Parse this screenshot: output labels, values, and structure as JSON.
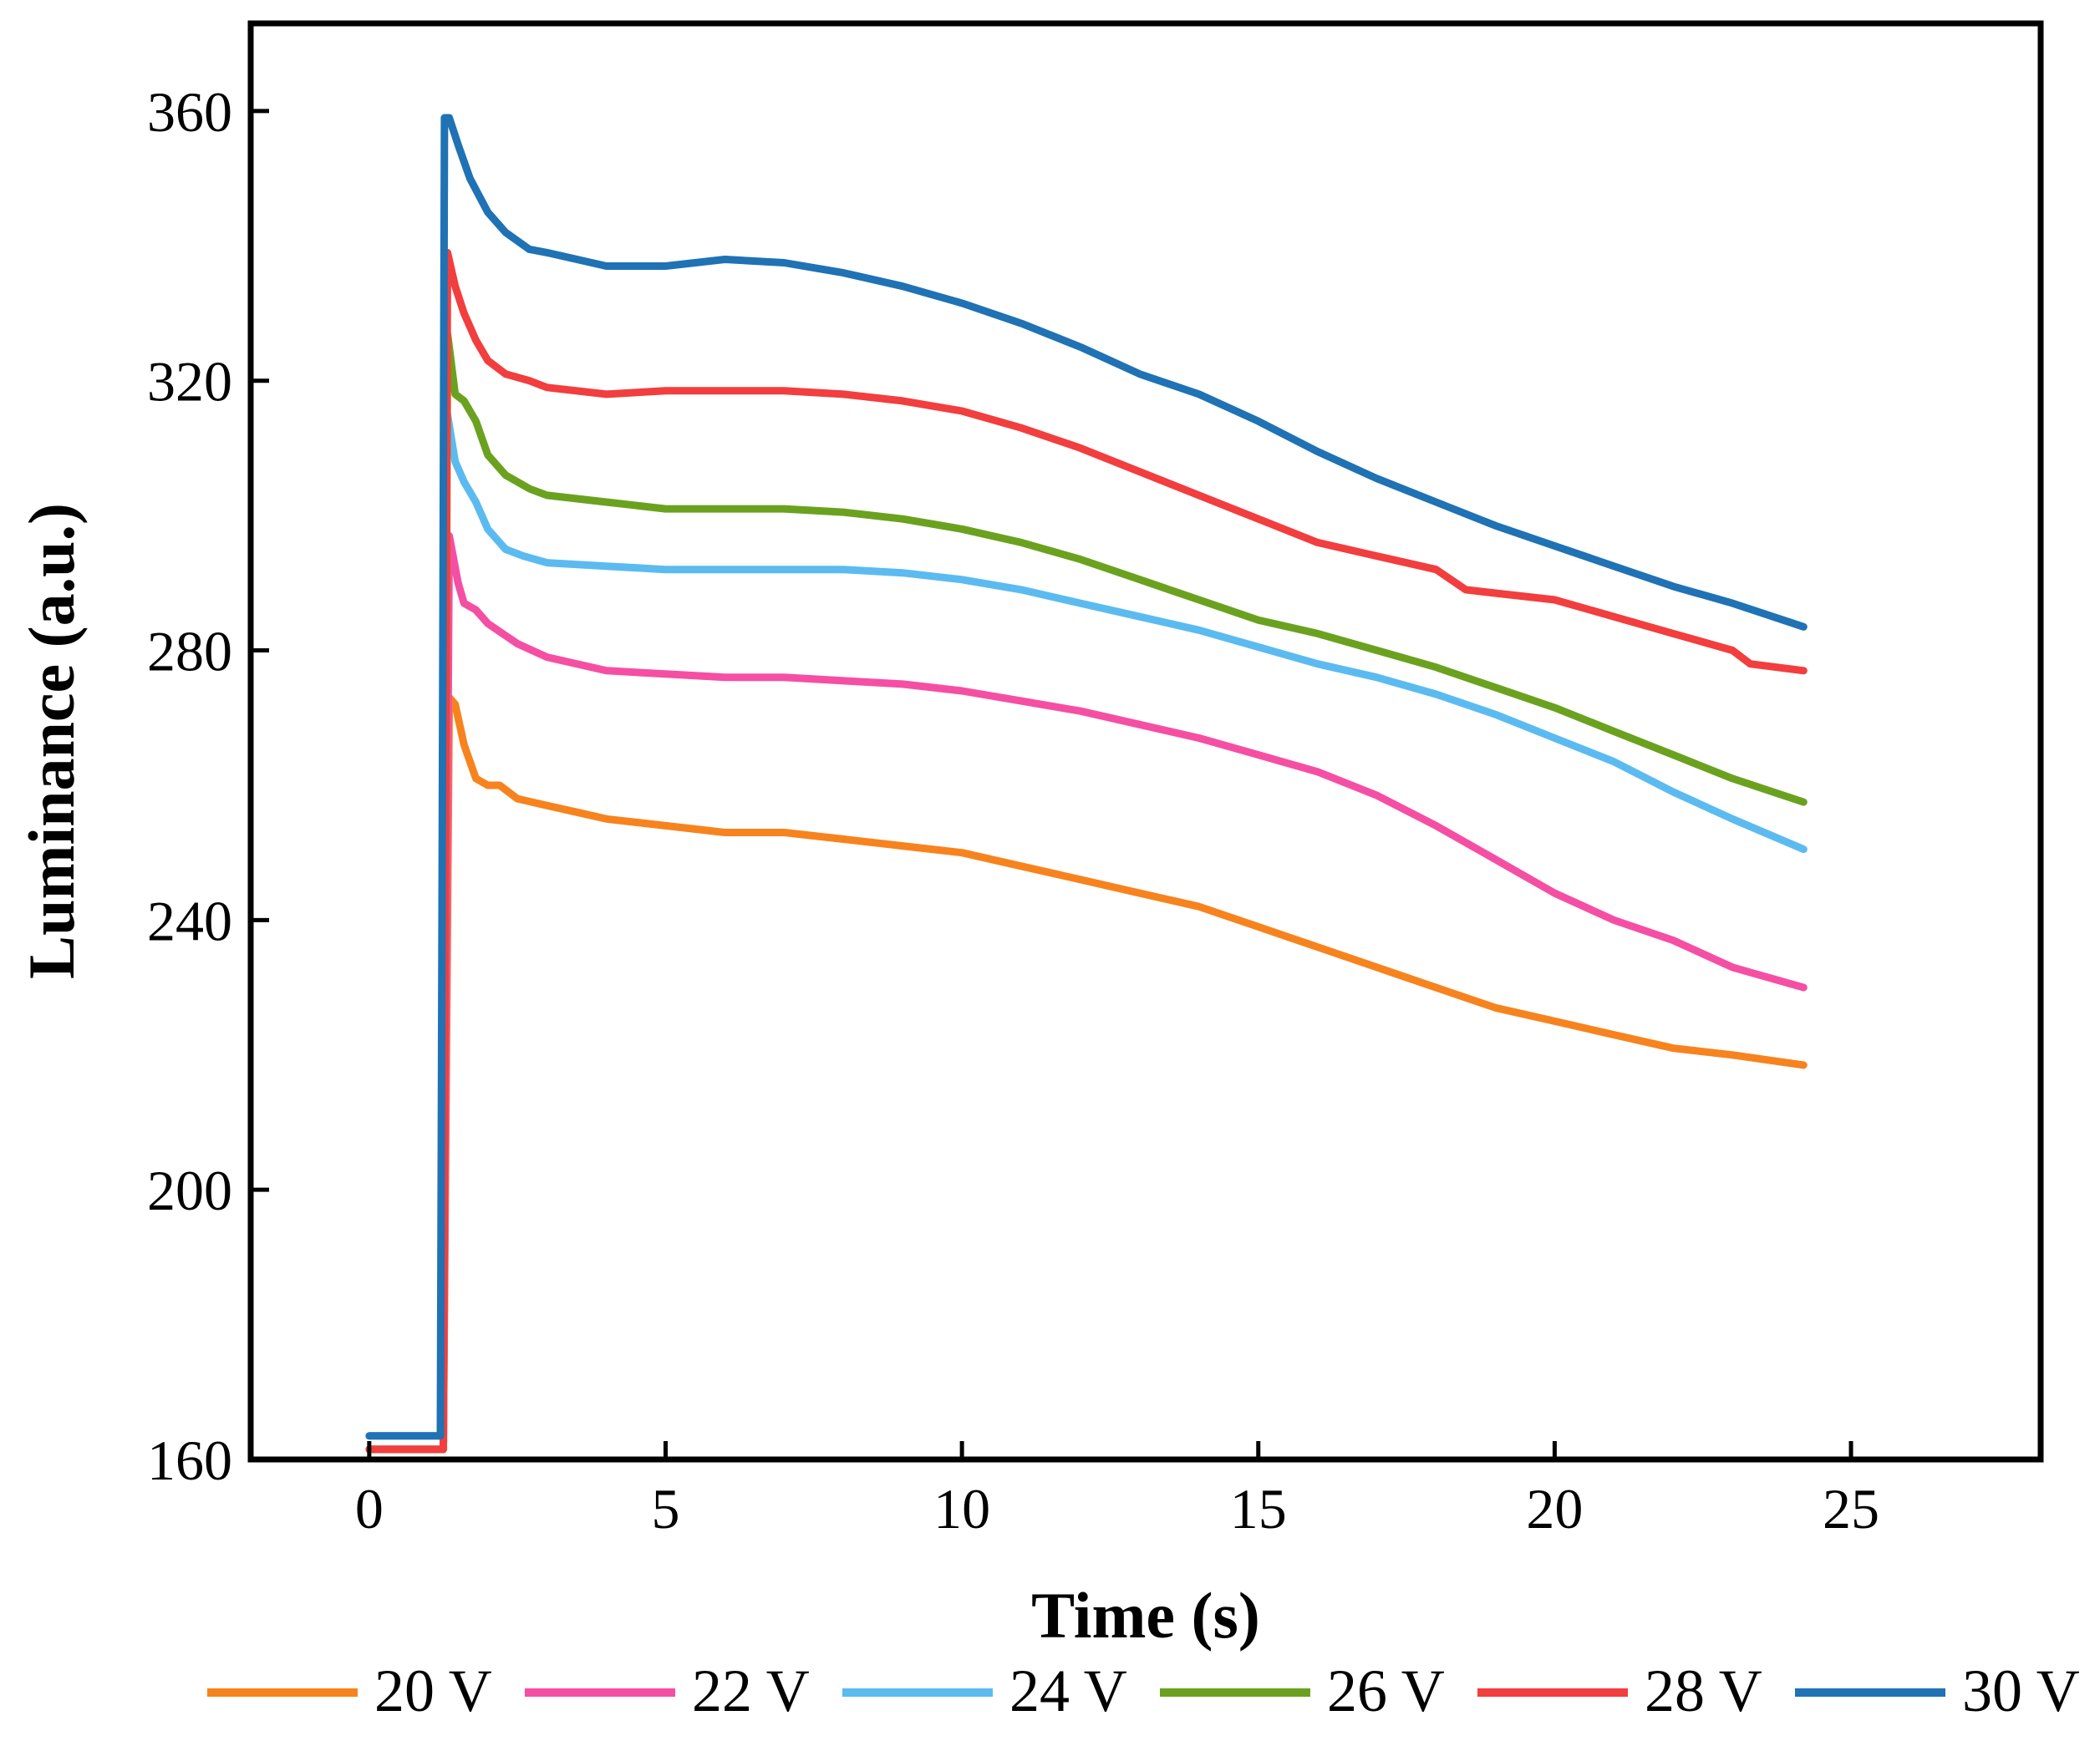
{
  "chart_data": {
    "type": "line",
    "title": "",
    "xlabel": "Time (s)",
    "ylabel": "Luminance (a.u.)",
    "xlim": [
      -2,
      28.2
    ],
    "ylim": [
      160,
      373
    ],
    "xticks": [
      0,
      5,
      10,
      15,
      20,
      25
    ],
    "yticks": [
      160,
      200,
      240,
      280,
      320,
      360
    ],
    "xtick_labels": [
      "0",
      "5",
      "10",
      "15",
      "20",
      "25"
    ],
    "ytick_labels": [
      "160",
      "200",
      "240",
      "280",
      "320",
      "360"
    ],
    "grid": false,
    "legend_position": "bottom",
    "series": [
      {
        "name": "20 V",
        "color": "#F7831E",
        "points": [
          [
            0,
            161.5
          ],
          [
            1.1,
            161.5
          ],
          [
            1.25,
            161.5
          ],
          [
            1.35,
            273
          ],
          [
            1.45,
            272
          ],
          [
            1.6,
            266
          ],
          [
            1.8,
            261
          ],
          [
            2.0,
            260
          ],
          [
            2.2,
            260
          ],
          [
            2.5,
            258
          ],
          [
            3,
            257
          ],
          [
            3.5,
            256
          ],
          [
            4,
            255
          ],
          [
            5,
            254
          ],
          [
            6,
            253
          ],
          [
            7,
            253
          ],
          [
            8,
            252
          ],
          [
            9,
            251
          ],
          [
            10,
            250
          ],
          [
            11,
            248
          ],
          [
            12,
            246
          ],
          [
            13,
            244
          ],
          [
            14,
            242
          ],
          [
            15,
            239
          ],
          [
            16,
            236
          ],
          [
            17,
            233
          ],
          [
            18,
            230
          ],
          [
            19,
            227
          ],
          [
            20,
            225
          ],
          [
            21,
            223
          ],
          [
            22,
            221
          ],
          [
            23,
            220
          ],
          [
            24.2,
            218.5
          ]
        ]
      },
      {
        "name": "22 V",
        "color": "#F54FA4",
        "points": [
          [
            0,
            161.5
          ],
          [
            1.1,
            161.5
          ],
          [
            1.25,
            161.5
          ],
          [
            1.35,
            297
          ],
          [
            1.5,
            290
          ],
          [
            1.6,
            287
          ],
          [
            1.8,
            286
          ],
          [
            2.0,
            284
          ],
          [
            2.5,
            281
          ],
          [
            3,
            279
          ],
          [
            4,
            277
          ],
          [
            5,
            276.5
          ],
          [
            6,
            276
          ],
          [
            7,
            276
          ],
          [
            8,
            275.5
          ],
          [
            9,
            275
          ],
          [
            10,
            274
          ],
          [
            11,
            272.5
          ],
          [
            12,
            271
          ],
          [
            13,
            269
          ],
          [
            14,
            267
          ],
          [
            15,
            264.5
          ],
          [
            16,
            262
          ],
          [
            17,
            258.5
          ],
          [
            18,
            254
          ],
          [
            19,
            249
          ],
          [
            20,
            244
          ],
          [
            21,
            240
          ],
          [
            22,
            237
          ],
          [
            23,
            233
          ],
          [
            24.2,
            230
          ]
        ]
      },
      {
        "name": "24 V",
        "color": "#5BBBF0",
        "points": [
          [
            0,
            163.5
          ],
          [
            1.1,
            163.5
          ],
          [
            1.22,
            163.5
          ],
          [
            1.3,
            316
          ],
          [
            1.45,
            308
          ],
          [
            1.6,
            305
          ],
          [
            1.8,
            302
          ],
          [
            2.0,
            298
          ],
          [
            2.3,
            295
          ],
          [
            2.6,
            294
          ],
          [
            3,
            293
          ],
          [
            4,
            292.5
          ],
          [
            5,
            292
          ],
          [
            6,
            292
          ],
          [
            7,
            292
          ],
          [
            8,
            292
          ],
          [
            9,
            291.5
          ],
          [
            10,
            290.5
          ],
          [
            11,
            289
          ],
          [
            12,
            287
          ],
          [
            13,
            285
          ],
          [
            14,
            283
          ],
          [
            15,
            280.5
          ],
          [
            16,
            278
          ],
          [
            17,
            276
          ],
          [
            18,
            273.5
          ],
          [
            19,
            270.5
          ],
          [
            20,
            267
          ],
          [
            21,
            263.5
          ],
          [
            22,
            259
          ],
          [
            23,
            255
          ],
          [
            24.2,
            250.5
          ]
        ]
      },
      {
        "name": "26 V",
        "color": "#6AA21F",
        "points": [
          [
            0,
            161.5
          ],
          [
            1.1,
            161.5
          ],
          [
            1.25,
            161.5
          ],
          [
            1.32,
            327
          ],
          [
            1.45,
            318
          ],
          [
            1.6,
            317
          ],
          [
            1.8,
            314
          ],
          [
            2.0,
            309
          ],
          [
            2.3,
            306
          ],
          [
            2.7,
            304
          ],
          [
            3,
            303
          ],
          [
            4,
            302
          ],
          [
            5,
            301
          ],
          [
            6,
            301
          ],
          [
            7,
            301
          ],
          [
            8,
            300.5
          ],
          [
            9,
            299.5
          ],
          [
            10,
            298
          ],
          [
            11,
            296
          ],
          [
            12,
            293.5
          ],
          [
            13,
            290.5
          ],
          [
            14,
            287.5
          ],
          [
            15,
            284.5
          ],
          [
            16,
            282.5
          ],
          [
            17,
            280
          ],
          [
            18,
            277.5
          ],
          [
            19,
            274.5
          ],
          [
            20,
            271.5
          ],
          [
            21,
            268
          ],
          [
            22,
            264.5
          ],
          [
            23,
            261
          ],
          [
            24.2,
            257.5
          ]
        ]
      },
      {
        "name": "28 V",
        "color": "#F23E3E",
        "points": [
          [
            0,
            161.5
          ],
          [
            1.1,
            161.5
          ],
          [
            1.25,
            161.5
          ],
          [
            1.32,
            339
          ],
          [
            1.45,
            334
          ],
          [
            1.6,
            330
          ],
          [
            1.8,
            326
          ],
          [
            2.0,
            323
          ],
          [
            2.3,
            321
          ],
          [
            2.7,
            320
          ],
          [
            3,
            319
          ],
          [
            4,
            318
          ],
          [
            5,
            318.5
          ],
          [
            6,
            318.5
          ],
          [
            7,
            318.5
          ],
          [
            8,
            318
          ],
          [
            9,
            317
          ],
          [
            10,
            315.5
          ],
          [
            11,
            313
          ],
          [
            12,
            310
          ],
          [
            13,
            306.5
          ],
          [
            14,
            303
          ],
          [
            15,
            299.5
          ],
          [
            16,
            296
          ],
          [
            17,
            294
          ],
          [
            18,
            292
          ],
          [
            18.5,
            289
          ],
          [
            19,
            288.5
          ],
          [
            20,
            287.5
          ],
          [
            21,
            285
          ],
          [
            22,
            282.5
          ],
          [
            23,
            280
          ],
          [
            23.3,
            278
          ],
          [
            24.2,
            277
          ]
        ]
      },
      {
        "name": "30 V",
        "color": "#1F72B4",
        "points": [
          [
            0,
            163.5
          ],
          [
            1.1,
            163.5
          ],
          [
            1.2,
            163.5
          ],
          [
            1.27,
            359
          ],
          [
            1.35,
            359
          ],
          [
            1.5,
            355
          ],
          [
            1.7,
            350
          ],
          [
            2.0,
            345
          ],
          [
            2.3,
            342
          ],
          [
            2.7,
            339.5
          ],
          [
            3,
            339
          ],
          [
            4,
            337
          ],
          [
            5,
            337
          ],
          [
            5.5,
            337.5
          ],
          [
            6,
            338
          ],
          [
            7,
            337.5
          ],
          [
            8,
            336
          ],
          [
            9,
            334
          ],
          [
            10,
            331.5
          ],
          [
            11,
            328.5
          ],
          [
            12,
            325
          ],
          [
            13,
            321
          ],
          [
            14,
            318
          ],
          [
            15,
            314
          ],
          [
            16,
            309.5
          ],
          [
            17,
            305.5
          ],
          [
            18,
            302
          ],
          [
            19,
            298.5
          ],
          [
            20,
            295.5
          ],
          [
            21,
            292.5
          ],
          [
            22,
            289.5
          ],
          [
            23,
            287
          ],
          [
            24.2,
            283.5
          ]
        ]
      }
    ]
  }
}
